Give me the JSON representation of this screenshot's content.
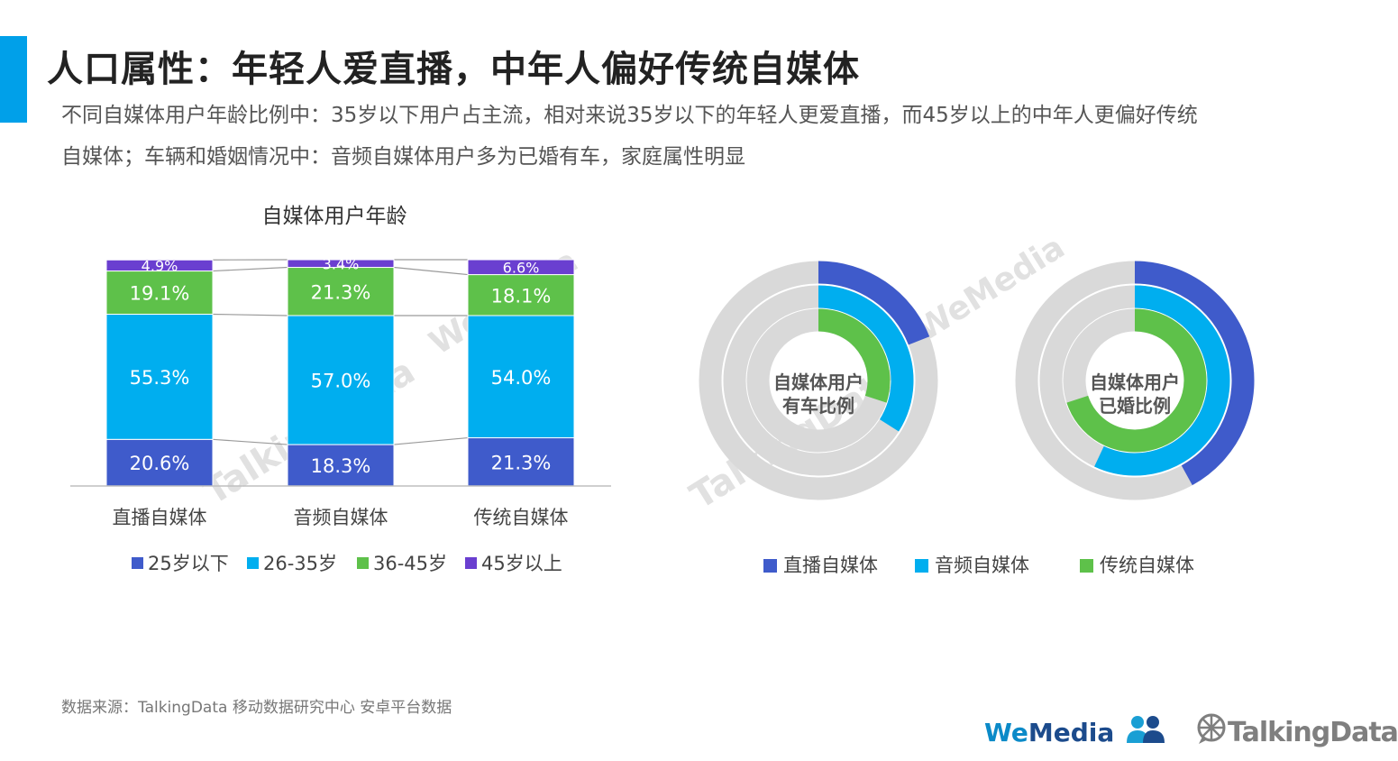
{
  "header": {
    "title": "人口属性：年轻人爱直播，中年人偏好传统自媒体",
    "desc_line1": "不同自媒体用户年龄比例中：35岁以下用户占主流，相对来说35岁以下的年轻人更爱直播，而45岁以上的中年人更偏好传统",
    "desc_line2": "自媒体；车辆和婚姻情况中：音频自媒体用户多为已婚有车，家庭属性明显"
  },
  "source": "数据来源：TalkingData 移动数据研究中心 安卓平台数据",
  "logos": {
    "wemedia_we": "We",
    "wemedia_media": "Media",
    "talkingdata": "TalkingData"
  },
  "watermarks": [
    "WeMedia",
    "TalkingData"
  ],
  "colors": {
    "accent": "#00a0e9",
    "c25": "#3f5bcb",
    "c26_35": "#00aeef",
    "c36_45": "#5ec14a",
    "c45": "#6a3fd0",
    "ring_bg": "#d9d9d9"
  },
  "chart_data": [
    {
      "type": "bar",
      "stacked": true,
      "normalized": true,
      "title": "自媒体用户年龄",
      "categories": [
        "直播自媒体",
        "音频自媒体",
        "传统自媒体"
      ],
      "series": [
        {
          "name": "25岁以下",
          "color": "#3f5bcb",
          "values": [
            20.6,
            18.3,
            21.3
          ],
          "labels": [
            "20.6%",
            "18.3%",
            "21.3%"
          ]
        },
        {
          "name": "26-35岁",
          "color": "#00aeef",
          "values": [
            55.3,
            57.0,
            54.0
          ],
          "labels": [
            "55.3%",
            "57.0%",
            "54.0%"
          ]
        },
        {
          "name": "36-45岁",
          "color": "#5ec14a",
          "values": [
            19.1,
            21.3,
            18.1
          ],
          "labels": [
            "19.1%",
            "21.3%",
            "18.1%"
          ]
        },
        {
          "name": "45岁以上",
          "color": "#6a3fd0",
          "values": [
            4.9,
            3.4,
            6.6
          ],
          "labels": [
            "4.9%",
            "3.4%",
            "6.6%"
          ]
        }
      ],
      "ylim": [
        0,
        100
      ],
      "legend": "bottom"
    },
    {
      "type": "pie",
      "variant": "concentric-rings",
      "center_label": [
        "自媒体用户",
        "有车比例"
      ],
      "series": [
        {
          "name": "直播自媒体",
          "color": "#3f5bcb",
          "value": 0.19
        },
        {
          "name": "音频自媒体",
          "color": "#00aeef",
          "value": 0.34
        },
        {
          "name": "传统自媒体",
          "color": "#5ec14a",
          "value": 0.3
        }
      ]
    },
    {
      "type": "pie",
      "variant": "concentric-rings",
      "center_label": [
        "自媒体用户",
        "已婚比例"
      ],
      "series": [
        {
          "name": "直播自媒体",
          "color": "#3f5bcb",
          "value": 0.42
        },
        {
          "name": "音频自媒体",
          "color": "#00aeef",
          "value": 0.57
        },
        {
          "name": "传统自媒体",
          "color": "#5ec14a",
          "value": 0.7
        }
      ]
    }
  ],
  "donut_legend": [
    {
      "label": "直播自媒体",
      "color": "#3f5bcb"
    },
    {
      "label": "音频自媒体",
      "color": "#00aeef"
    },
    {
      "label": "传统自媒体",
      "color": "#5ec14a"
    }
  ]
}
